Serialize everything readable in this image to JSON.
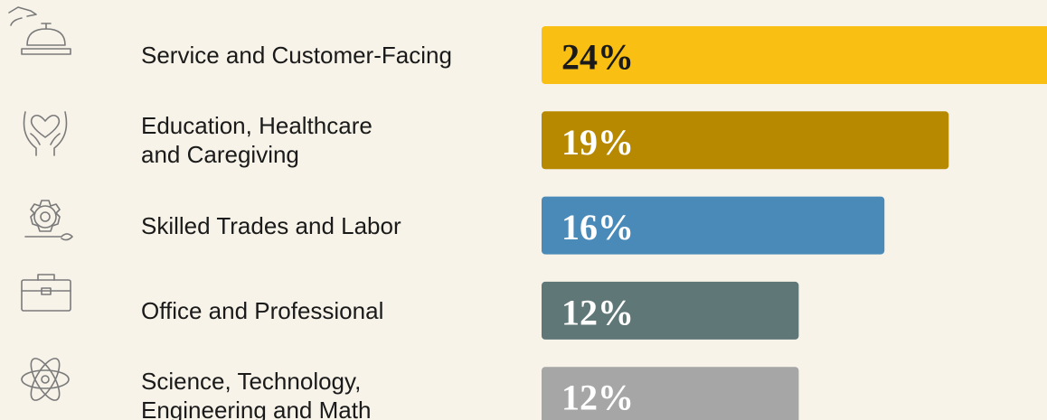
{
  "chart_data": {
    "type": "bar",
    "orientation": "horizontal",
    "categories": [
      "Service and Customer-Facing",
      "Education, Healthcare\nand Caregiving",
      "Skilled Trades and Labor",
      "Office and Professional",
      "Science, Technology,\nEngineering and Math"
    ],
    "values": [
      24,
      19,
      16,
      12,
      12
    ],
    "value_labels": [
      "24%",
      "19%",
      "16%",
      "12%",
      "12%"
    ],
    "colors": [
      "#f9c013",
      "#b78900",
      "#4a8ab9",
      "#5f7777",
      "#a6a6a6"
    ]
  }
}
